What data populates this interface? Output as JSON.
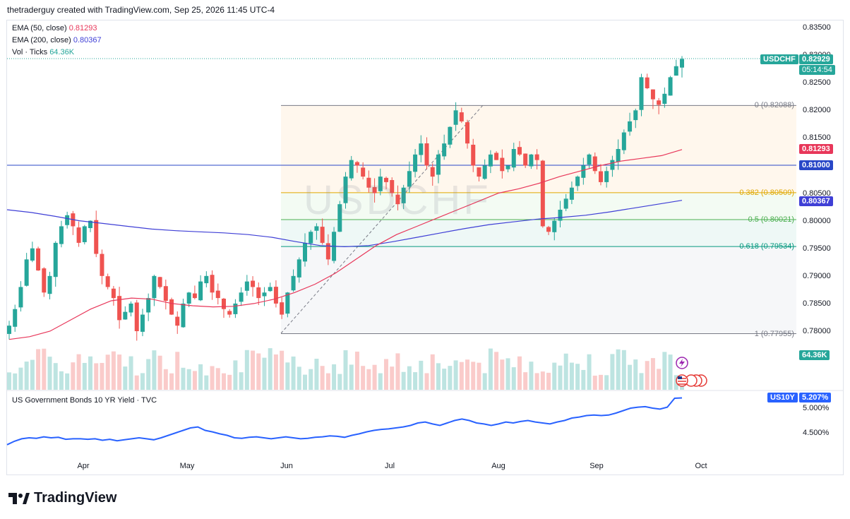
{
  "header": {
    "text": "thetraderguy created with TradingView.com, Sep 25, 2026 11:45 UTC-4"
  },
  "legend": {
    "ema50_label": "EMA (50, close)",
    "ema50_value": "0.81293",
    "ema200_label": "EMA (200, close)",
    "ema200_value": "0.80367",
    "vol_label": "Vol · Ticks",
    "vol_value": "64.36K"
  },
  "colors": {
    "up": "#26a69a",
    "down": "#ef5350",
    "ema50": "#e8375a",
    "ema200": "#3f3fd6",
    "bond": "#2962ff",
    "fib0": "#787b86",
    "fib382": "#e0a800",
    "fib5": "#4caf50",
    "fib618": "#089981",
    "hline": "#2947c7"
  },
  "watermark": "USDCHF",
  "price_axis": {
    "ticks": [
      "0.83500",
      "0.83000",
      "0.82500",
      "0.82000",
      "0.81500",
      "0.81000",
      "0.80500",
      "0.80000",
      "0.79500",
      "0.79000",
      "0.78500",
      "0.78000"
    ]
  },
  "badges": {
    "symbol": "USDCHF",
    "price": "0.82929",
    "countdown": "05:14:54",
    "ema50": "0.81293",
    "hline": "0.81000",
    "ema200": "0.80367",
    "volume": "64.36K"
  },
  "fib": [
    {
      "label": "0 (0.82088)",
      "level": 0.82088
    },
    {
      "label": "0.382 (0.80509)",
      "level": 0.80509
    },
    {
      "label": "0.5 (0.80021)",
      "level": 0.80021
    },
    {
      "label": "0.618 (0.79534)",
      "level": 0.79534
    },
    {
      "label": "1 (0.77955)",
      "level": 0.77955
    }
  ],
  "time_axis": {
    "labels": [
      "Apr",
      "May",
      "Jun",
      "Jul",
      "Aug",
      "Sep",
      "Oct"
    ]
  },
  "bond_pane": {
    "title": "US Government Bonds 10 YR Yield · TVC",
    "symbol": "US10Y",
    "value": "5.207%",
    "ticks": [
      "5.000%",
      "4.500%"
    ]
  },
  "logo": {
    "text": "TradingView"
  },
  "chart_data": {
    "type": "candlestick",
    "symbol": "USDCHF",
    "ylim": [
      0.7775,
      0.8355
    ],
    "close_path": [
      0.781,
      0.784,
      0.788,
      0.793,
      0.795,
      0.791,
      0.787,
      0.79,
      0.796,
      0.799,
      0.801,
      0.799,
      0.796,
      0.799,
      0.8,
      0.794,
      0.79,
      0.788,
      0.786,
      0.782,
      0.7835,
      0.785,
      0.78,
      0.783,
      0.786,
      0.79,
      0.788,
      0.7855,
      0.783,
      0.781,
      0.785,
      0.787,
      0.786,
      0.789,
      0.79,
      0.787,
      0.786,
      0.784,
      0.783,
      0.785,
      0.787,
      0.789,
      0.788,
      0.786,
      0.787,
      0.788,
      0.785,
      0.783,
      0.787,
      0.79,
      0.793,
      0.796,
      0.798,
      0.799,
      0.796,
      0.793,
      0.798,
      0.803,
      0.808,
      0.811,
      0.81,
      0.808,
      0.806,
      0.805,
      0.808,
      0.807,
      0.805,
      0.803,
      0.806,
      0.809,
      0.812,
      0.814,
      0.81,
      0.808,
      0.812,
      0.814,
      0.817,
      0.82,
      0.818,
      0.814,
      0.81,
      0.808,
      0.81,
      0.812,
      0.811,
      0.809,
      0.81,
      0.813,
      0.812,
      0.81,
      0.812,
      0.811,
      0.799,
      0.798,
      0.8,
      0.802,
      0.804,
      0.806,
      0.808,
      0.81,
      0.812,
      0.809,
      0.807,
      0.809,
      0.811,
      0.813,
      0.816,
      0.818,
      0.82,
      0.826,
      0.824,
      0.822,
      0.821,
      0.823,
      0.826,
      0.828,
      0.8293
    ],
    "ema50_path": [
      0.7785,
      0.779,
      0.78,
      0.782,
      0.784,
      0.7855,
      0.786,
      0.7858,
      0.785,
      0.7846,
      0.7844,
      0.7845,
      0.785,
      0.7858,
      0.787,
      0.7885,
      0.7905,
      0.793,
      0.7955,
      0.7975,
      0.799,
      0.8005,
      0.802,
      0.8035,
      0.805,
      0.8058,
      0.8068,
      0.808,
      0.809,
      0.81,
      0.8108,
      0.8113,
      0.8118,
      0.8129
    ],
    "ema200_path": [
      0.802,
      0.8015,
      0.8008,
      0.8,
      0.7995,
      0.799,
      0.7985,
      0.7982,
      0.798,
      0.7978,
      0.7975,
      0.797,
      0.7962,
      0.7955,
      0.7953,
      0.7955,
      0.7962,
      0.797,
      0.7978,
      0.7986,
      0.7993,
      0.7998,
      0.8003,
      0.8006,
      0.801,
      0.8016,
      0.8023,
      0.803,
      0.8037
    ],
    "bond_yield_path": [
      4.26,
      4.33,
      4.38,
      4.4,
      4.39,
      4.42,
      4.4,
      4.41,
      4.37,
      4.38,
      4.38,
      4.37,
      4.38,
      4.35,
      4.37,
      4.34,
      4.36,
      4.38,
      4.4,
      4.38,
      4.36,
      4.4,
      4.45,
      4.5,
      4.55,
      4.6,
      4.62,
      4.55,
      4.52,
      4.48,
      4.45,
      4.4,
      4.39,
      4.41,
      4.42,
      4.4,
      4.38,
      4.4,
      4.42,
      4.4,
      4.38,
      4.39,
      4.41,
      4.42,
      4.44,
      4.43,
      4.41,
      4.45,
      4.48,
      4.52,
      4.55,
      4.57,
      4.58,
      4.6,
      4.62,
      4.65,
      4.7,
      4.72,
      4.68,
      4.65,
      4.7,
      4.75,
      4.78,
      4.75,
      4.7,
      4.68,
      4.65,
      4.68,
      4.72,
      4.7,
      4.73,
      4.75,
      4.72,
      4.7,
      4.68,
      4.72,
      4.75,
      4.8,
      4.82,
      4.85,
      4.86,
      4.85,
      4.86,
      4.9,
      4.95,
      5.0,
      5.02,
      5.03,
      5.0,
      4.98,
      5.02,
      5.2,
      5.207
    ]
  }
}
